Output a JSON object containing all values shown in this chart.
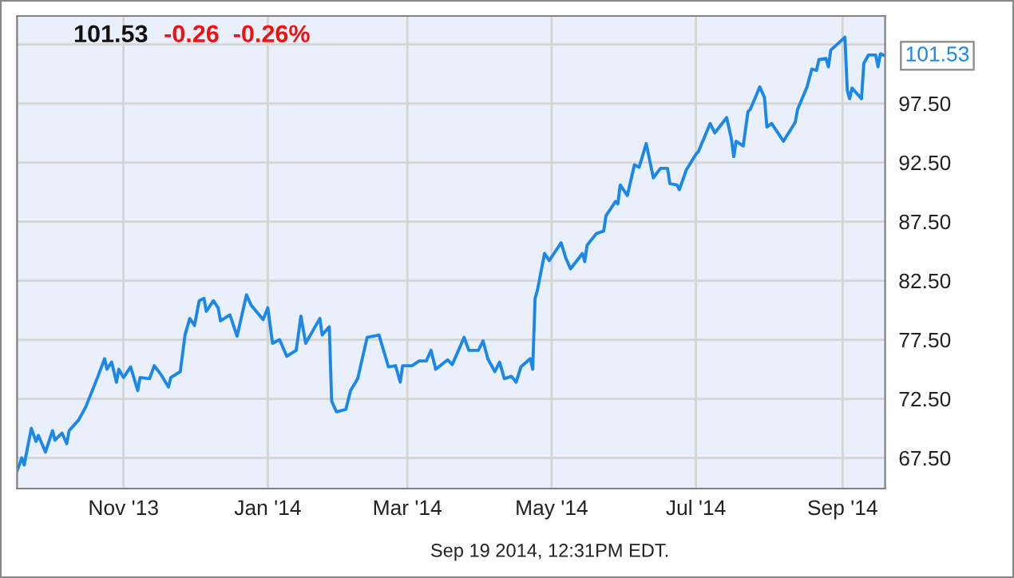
{
  "chart_data": {
    "type": "line",
    "title": "101.53",
    "subtitle": "-0.26  -0.26%",
    "x": [
      "2013-09-17",
      "2013-09-19",
      "2013-09-20",
      "2013-09-23",
      "2013-09-25",
      "2013-09-26",
      "2013-09-29",
      "2013-10-02",
      "2013-10-03",
      "2013-10-06",
      "2013-10-08",
      "2013-10-09",
      "2013-10-13",
      "2013-10-16",
      "2013-10-21",
      "2013-10-24",
      "2013-10-25",
      "2013-10-27",
      "2013-10-29",
      "2013-10-30",
      "2013-11-01",
      "2013-11-04",
      "2013-11-07",
      "2013-11-08",
      "2013-11-12",
      "2013-11-14",
      "2013-11-17",
      "2013-11-20",
      "2013-11-21",
      "2013-11-25",
      "2013-11-27",
      "2013-11-29",
      "2013-12-01",
      "2013-12-03",
      "2013-12-05",
      "2013-12-06",
      "2013-12-09",
      "2013-12-11",
      "2013-12-12",
      "2013-12-16",
      "2013-12-19",
      "2013-12-23",
      "2013-12-25",
      "2013-12-30",
      "2014-01-01",
      "2014-01-03",
      "2014-01-06",
      "2014-01-09",
      "2014-01-13",
      "2014-01-15",
      "2014-01-17",
      "2014-01-23",
      "2014-01-24",
      "2014-01-27",
      "2014-01-28",
      "2014-01-30",
      "2014-02-03",
      "2014-02-05",
      "2014-02-08",
      "2014-02-12",
      "2014-02-17",
      "2014-02-21",
      "2014-02-24",
      "2014-02-26",
      "2014-02-27",
      "2014-03-03",
      "2014-03-06",
      "2014-03-09",
      "2014-03-11",
      "2014-03-13",
      "2014-03-18",
      "2014-03-20",
      "2014-03-25",
      "2014-03-27",
      "2014-03-31",
      "2014-04-02",
      "2014-04-04",
      "2014-04-07",
      "2014-04-09",
      "2014-04-11",
      "2014-04-14",
      "2014-04-16",
      "2014-04-18",
      "2014-04-22",
      "2014-04-23",
      "2014-04-24",
      "2014-04-25",
      "2014-04-28",
      "2014-04-30",
      "2014-05-02",
      "2014-05-05",
      "2014-05-07",
      "2014-05-09",
      "2014-05-14",
      "2014-05-15",
      "2014-05-16",
      "2014-05-20",
      "2014-05-23",
      "2014-05-24",
      "2014-05-28",
      "2014-05-29",
      "2014-05-30",
      "2014-06-02",
      "2014-06-05",
      "2014-06-07",
      "2014-06-10",
      "2014-06-13",
      "2014-06-16",
      "2014-06-19",
      "2014-06-20",
      "2014-06-23",
      "2014-06-24",
      "2014-06-27",
      "2014-07-01",
      "2014-07-02",
      "2014-07-07",
      "2014-07-09",
      "2014-07-14",
      "2014-07-16",
      "2014-07-17",
      "2014-07-18",
      "2014-07-21",
      "2014-07-23",
      "2014-07-24",
      "2014-07-28",
      "2014-07-30",
      "2014-07-31",
      "2014-08-02",
      "2014-08-07",
      "2014-08-12",
      "2014-08-13",
      "2014-08-17",
      "2014-08-19",
      "2014-08-21",
      "2014-08-22",
      "2014-08-25",
      "2014-08-26",
      "2014-08-27",
      "2014-09-02",
      "2014-09-03",
      "2014-09-04",
      "2014-09-05",
      "2014-09-09",
      "2014-09-10",
      "2014-09-12",
      "2014-09-15",
      "2014-09-16",
      "2014-09-17",
      "2014-09-19"
    ],
    "series": [
      {
        "color": "#1b87e6",
        "values": [
          66.4,
          67.5,
          66.9,
          70.0,
          68.9,
          69.4,
          68.0,
          69.8,
          69.0,
          69.6,
          68.7,
          69.8,
          70.7,
          71.8,
          74.3,
          75.9,
          75.0,
          75.6,
          73.9,
          75.0,
          74.3,
          75.2,
          73.2,
          74.3,
          74.2,
          75.3,
          74.5,
          73.5,
          74.3,
          74.8,
          77.9,
          79.3,
          78.7,
          80.8,
          81.0,
          79.9,
          80.8,
          80.2,
          79.1,
          79.6,
          77.8,
          81.3,
          80.4,
          79.2,
          80.2,
          77.2,
          77.5,
          76.1,
          76.6,
          79.5,
          77.2,
          79.3,
          77.9,
          78.6,
          72.3,
          71.4,
          71.6,
          73.2,
          74.2,
          77.7,
          77.9,
          75.2,
          75.3,
          73.9,
          75.3,
          75.3,
          75.7,
          75.7,
          76.6,
          75.0,
          75.8,
          75.4,
          77.7,
          76.6,
          76.6,
          77.4,
          75.9,
          74.8,
          75.6,
          74.2,
          74.4,
          73.9,
          75.2,
          75.9,
          75.0,
          81.0,
          81.7,
          84.8,
          84.2,
          84.8,
          85.7,
          84.4,
          83.5,
          84.8,
          84.1,
          85.5,
          86.5,
          86.7,
          88.0,
          89.2,
          89.0,
          90.6,
          89.7,
          92.3,
          92.1,
          94.1,
          91.2,
          92.0,
          92.0,
          90.7,
          90.6,
          90.2,
          91.9,
          93.2,
          93.4,
          95.8,
          95.0,
          96.3,
          94.5,
          93.0,
          94.3,
          93.9,
          96.8,
          97.0,
          98.9,
          98.0,
          95.5,
          95.8,
          94.3,
          95.9,
          97.0,
          98.9,
          100.4,
          100.3,
          101.2,
          101.3,
          100.6,
          102.0,
          103.1,
          98.6,
          97.9,
          98.8,
          97.9,
          100.9,
          101.6,
          101.6,
          100.6,
          101.7,
          101.53
        ]
      }
    ],
    "xlim": [
      "2013-09-17",
      "2014-09-19"
    ],
    "xticks": [
      {
        "value": "2013-11-01",
        "label": "Nov '13"
      },
      {
        "value": "2014-01-01",
        "label": "Jan '14"
      },
      {
        "value": "2014-03-01",
        "label": "Mar '14"
      },
      {
        "value": "2014-05-01",
        "label": "May '14"
      },
      {
        "value": "2014-07-01",
        "label": "Jul '14"
      },
      {
        "value": "2014-09-01",
        "label": "Sep '14"
      }
    ],
    "ylim": [
      64.9,
      104.9
    ],
    "yticks": [
      {
        "value": 67.5,
        "label": "67.50"
      },
      {
        "value": 72.5,
        "label": "72.50"
      },
      {
        "value": 77.5,
        "label": "77.50"
      },
      {
        "value": 82.5,
        "label": "82.50"
      },
      {
        "value": 87.5,
        "label": "87.50"
      },
      {
        "value": 92.5,
        "label": "92.50"
      },
      {
        "value": 97.5,
        "label": "97.50"
      },
      {
        "value": 102.5,
        "label": null
      }
    ],
    "grid": true,
    "annotations": [
      {
        "text": "101.53",
        "x": "2014-09-19",
        "y": 101.53
      },
      "Sep 19 2014, 12:31PM EDT."
    ]
  }
}
